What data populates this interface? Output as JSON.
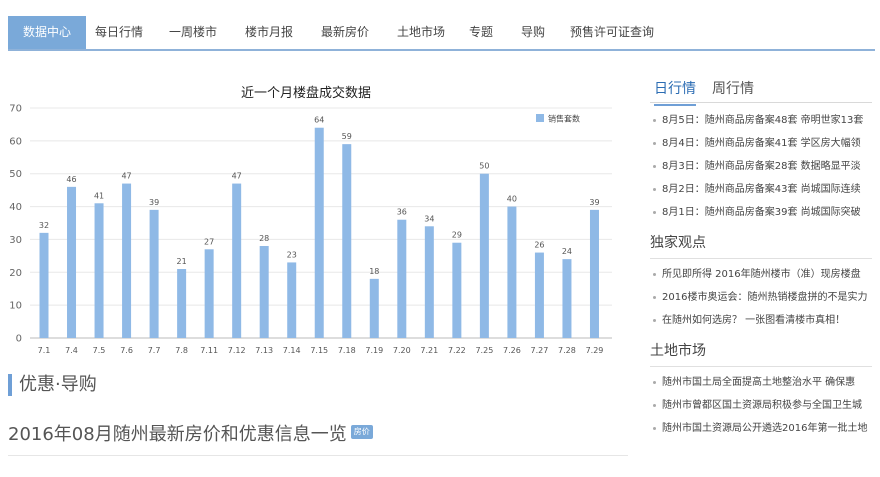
{
  "nav": {
    "items": [
      "数据中心",
      "每日行情",
      "一周楼市",
      "楼市月报",
      "最新房价",
      "土地市场",
      "专题",
      "导购",
      "预售许可证查询"
    ]
  },
  "chart_data": {
    "type": "bar",
    "title": "近一个月楼盘成交数据",
    "categories": [
      "7.1",
      "7.4",
      "7.5",
      "7.6",
      "7.7",
      "7.8",
      "7.11",
      "7.12",
      "7.13",
      "7.14",
      "7.15",
      "7.18",
      "7.19",
      "7.20",
      "7.21",
      "7.22",
      "7.25",
      "7.26",
      "7.27",
      "7.28",
      "7.29"
    ],
    "series": [
      {
        "name": "销售套数",
        "values": [
          32,
          46,
          41,
          47,
          39,
          21,
          27,
          47,
          28,
          23,
          64,
          59,
          18,
          36,
          34,
          29,
          50,
          40,
          26,
          24,
          39
        ],
        "color": "#8fb9e6"
      }
    ],
    "ylim": [
      0,
      70
    ],
    "yticks": [
      0,
      10,
      20,
      30,
      40,
      50,
      60,
      70
    ],
    "grid": true,
    "legend_position": "top-right"
  },
  "section": {
    "title": "优惠·导购",
    "article_title": "2016年08月随州最新房价和优惠信息一览",
    "article_tag": "房价"
  },
  "sidebar": {
    "tabs": [
      "日行情",
      "周行情"
    ],
    "daily": [
      "8月5日：随州商品房备案48套 帝明世家13套",
      "8月4日：随州商品房备案41套 学区房大幅领",
      "8月3日：随州商品房备案28套 数据略显平淡",
      "8月2日：随州商品房备案43套 尚城国际连续",
      "8月1日：随州商品房备案39套 尚城国际突破"
    ],
    "views_title": "独家观点",
    "views": [
      "所见即所得 2016年随州楼市（准）现房楼盘",
      "2016楼市奥运会：随州热销楼盘拼的不是实力",
      "在随州如何选房？ 一张图看清楼市真相！"
    ],
    "land_title": "土地市场",
    "land": [
      "随州市国土局全面提高土地整治水平 确保惠",
      "随州市曾都区国土资源局积极参与全国卫生城",
      "随州市国土资源局公开遴选2016年第一批土地"
    ]
  }
}
